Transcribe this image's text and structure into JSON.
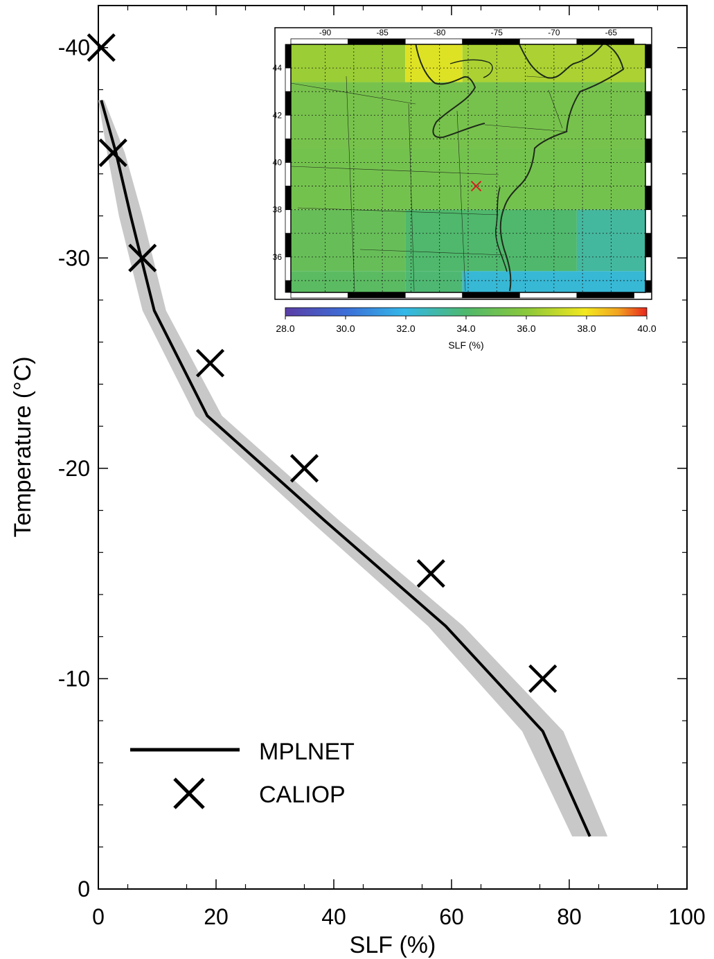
{
  "chart_data": {
    "type": "line",
    "xlabel": "SLF (%)",
    "ylabel": "Temperature (°C)",
    "xlim": [
      0,
      100
    ],
    "ylim": [
      0,
      -42
    ],
    "y_axis_inverted": true,
    "x_ticks": [
      0,
      20,
      40,
      60,
      80,
      100
    ],
    "x_tick_labels": [
      "0",
      "20",
      "40",
      "60",
      "80",
      "100"
    ],
    "y_ticks": [
      0,
      -10,
      -20,
      -30,
      -40
    ],
    "y_tick_labels": [
      "0",
      "-10",
      "-20",
      "-30",
      "-40"
    ],
    "series": [
      {
        "name": "MPLNET",
        "style": "line-with-uncertainty-band",
        "color": "#000000",
        "band_color": "#c8c8c8",
        "points": [
          {
            "x": 0.5,
            "y": -37.5
          },
          {
            "x": 3.0,
            "y": -35.0
          },
          {
            "x": 5.5,
            "y": -32.0
          },
          {
            "x": 9.5,
            "y": -27.5
          },
          {
            "x": 18.5,
            "y": -22.5
          },
          {
            "x": 38.5,
            "y": -17.5
          },
          {
            "x": 59.0,
            "y": -12.5
          },
          {
            "x": 75.5,
            "y": -7.5
          },
          {
            "x": 83.5,
            "y": -2.5
          }
        ],
        "band_lower": [
          0,
          1.5,
          3.5,
          7.5,
          16.5,
          36.0,
          56.0,
          72.0,
          80.5
        ],
        "band_upper": [
          1.0,
          4.5,
          7.5,
          11.5,
          21.0,
          41.0,
          62.0,
          79.0,
          86.5
        ]
      },
      {
        "name": "CALIOP",
        "style": "x-markers",
        "color": "#000000",
        "points": [
          {
            "x": 0.5,
            "y": -40
          },
          {
            "x": 2.5,
            "y": -35
          },
          {
            "x": 7.5,
            "y": -30
          },
          {
            "x": 19.0,
            "y": -25
          },
          {
            "x": 35.0,
            "y": -20
          },
          {
            "x": 56.5,
            "y": -15
          },
          {
            "x": 75.5,
            "y": -10
          }
        ]
      }
    ],
    "legend": {
      "placement": "bottom-left",
      "entries": [
        "MPLNET",
        "CALIOP"
      ]
    },
    "grid": false,
    "inset": {
      "type": "heatmap-map",
      "colorbar_label": "SLF (%)",
      "colorbar_range": [
        28.0,
        40.0
      ],
      "colorbar_ticks": [
        "28.0",
        "30.0",
        "32.0",
        "34.0",
        "36.0",
        "38.0",
        "40.0"
      ],
      "lon_ticks": [
        "-90",
        "-85",
        "-80",
        "-75",
        "-70",
        "-65"
      ],
      "lat_ticks": [
        "44",
        "42",
        "40",
        "38",
        "36"
      ],
      "lon_range": [
        -93,
        -62
      ],
      "lat_range": [
        34.5,
        45.0
      ],
      "site_marker": {
        "lon": -76.8,
        "lat": 39.0,
        "color": "#d42020"
      },
      "cells": [
        {
          "lat0": 43.4,
          "lat1": 45.0,
          "lon0": -93,
          "lon1": -83,
          "slf": 36.3
        },
        {
          "lat0": 43.4,
          "lat1": 45.0,
          "lon0": -83,
          "lon1": -78,
          "slf": 37.6
        },
        {
          "lat0": 43.4,
          "lat1": 45.0,
          "lon0": -78,
          "lon1": -62,
          "slf": 36.6
        },
        {
          "lat0": 40.6,
          "lat1": 43.4,
          "lon0": -93,
          "lon1": -62,
          "slf": 35.3
        },
        {
          "lat0": 38.0,
          "lat1": 40.6,
          "lon0": -93,
          "lon1": -62,
          "slf": 35.2
        },
        {
          "lat0": 35.4,
          "lat1": 38.0,
          "lon0": -93,
          "lon1": -83,
          "slf": 34.8
        },
        {
          "lat0": 35.4,
          "lat1": 38.0,
          "lon0": -83,
          "lon1": -68,
          "slf": 34.0
        },
        {
          "lat0": 35.4,
          "lat1": 38.0,
          "lon0": -68,
          "lon1": -62,
          "slf": 33.2
        },
        {
          "lat0": 34.5,
          "lat1": 35.4,
          "lon0": -93,
          "lon1": -83,
          "slf": 34.4
        },
        {
          "lat0": 34.5,
          "lat1": 35.4,
          "lon0": -83,
          "lon1": -78,
          "slf": 33.9
        },
        {
          "lat0": 34.5,
          "lat1": 35.4,
          "lon0": -78,
          "lon1": -62,
          "slf": 32.3
        }
      ]
    }
  }
}
